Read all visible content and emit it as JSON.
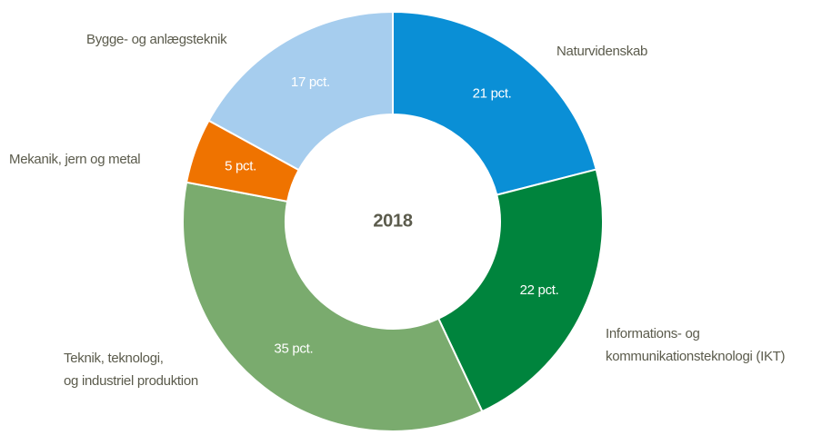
{
  "chart_data": {
    "type": "donut",
    "center_label": "2018",
    "categories": [
      "Naturvidenskab",
      [
        "Informations- og",
        "kommunikationsteknologi (IKT)"
      ],
      [
        "Teknik, teknologi,",
        "og industriel produktion"
      ],
      "Mekanik, jern og metal",
      "Bygge- og anlægsteknik"
    ],
    "values": [
      21,
      22,
      35,
      5,
      17
    ],
    "value_labels": [
      "21 pct.",
      "22 pct.",
      "35 pct.",
      "5 pct.",
      "17 pct."
    ],
    "colors": [
      "#0a8fd6",
      "#00843d",
      "#7aab6e",
      "#ef7300",
      "#a6cdee"
    ]
  }
}
